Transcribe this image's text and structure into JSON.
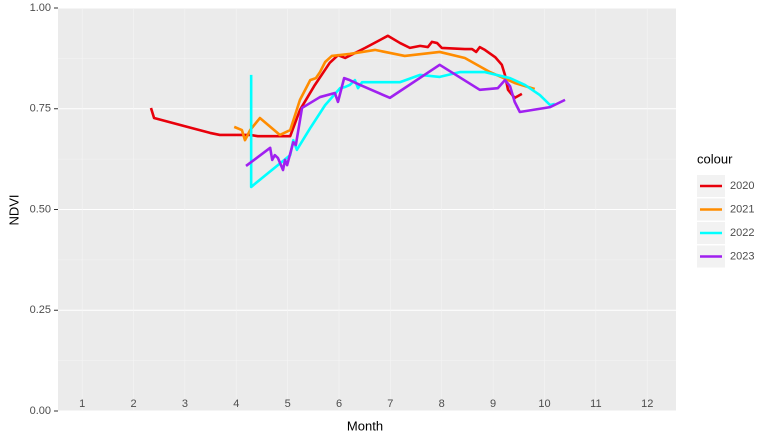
{
  "chart_data": {
    "type": "line",
    "x_label": "Month",
    "y_label": "NDVI",
    "legend_title": "colour",
    "legend": "right",
    "xlim": [
      0.53,
      12.56
    ],
    "ylim": [
      0,
      1
    ],
    "xticks": [
      1,
      2,
      3,
      4,
      5,
      6,
      7,
      8,
      9,
      10,
      11,
      12
    ],
    "yticks": [
      {
        "value": 0,
        "label": "0.00"
      },
      {
        "value": 0.25,
        "label": "0.25"
      },
      {
        "value": 0.5,
        "label": "0.50"
      },
      {
        "value": 0.75,
        "label": "0.75"
      },
      {
        "value": 1,
        "label": "1.00"
      }
    ],
    "grid": true,
    "series": [
      {
        "name": "2020",
        "color": "#e8000b",
        "x": [
          2.34,
          2.4,
          3.49,
          3.68,
          4.27,
          4.42,
          5.05,
          5.24,
          5.53,
          5.82,
          5.98,
          6.12,
          6.51,
          6.95,
          7.19,
          7.38,
          7.58,
          7.73,
          7.81,
          7.91,
          8.0,
          8.45,
          8.59,
          8.67,
          8.74,
          8.84,
          9.04,
          9.17,
          9.23,
          9.29,
          9.42,
          9.56
        ],
        "values": [
          0.752,
          0.727,
          0.69,
          0.685,
          0.685,
          0.682,
          0.682,
          0.747,
          0.809,
          0.864,
          0.883,
          0.876,
          0.901,
          0.931,
          0.913,
          0.901,
          0.906,
          0.903,
          0.916,
          0.913,
          0.901,
          0.898,
          0.898,
          0.891,
          0.903,
          0.896,
          0.878,
          0.859,
          0.834,
          0.797,
          0.777,
          0.787
        ]
      },
      {
        "name": "2021",
        "color": "#ff8c00",
        "x": [
          3.96,
          4.11,
          4.17,
          4.27,
          4.46,
          4.85,
          5.05,
          5.24,
          5.44,
          5.55,
          5.63,
          5.73,
          5.86,
          6.21,
          6.7,
          7.28,
          7.96,
          8.45,
          8.94,
          9.42,
          9.81
        ],
        "values": [
          0.705,
          0.697,
          0.672,
          0.697,
          0.727,
          0.685,
          0.697,
          0.772,
          0.821,
          0.826,
          0.841,
          0.866,
          0.881,
          0.886,
          0.896,
          0.881,
          0.891,
          0.876,
          0.841,
          0.814,
          0.799
        ]
      },
      {
        "name": "2022",
        "color": "#00ffff",
        "x": [
          4.29,
          4.29,
          5.05,
          5.11,
          5.18,
          5.44,
          5.73,
          6.02,
          6.12,
          6.21,
          6.31,
          6.37,
          6.45,
          6.8,
          7.19,
          7.58,
          7.96,
          8.35,
          8.84,
          9.33,
          9.62,
          9.91,
          10.11,
          10.2
        ],
        "values": [
          0.834,
          0.556,
          0.635,
          0.672,
          0.648,
          0.702,
          0.759,
          0.801,
          0.804,
          0.809,
          0.821,
          0.801,
          0.816,
          0.816,
          0.816,
          0.834,
          0.829,
          0.841,
          0.841,
          0.826,
          0.809,
          0.784,
          0.759,
          0.762
        ]
      },
      {
        "name": "2023",
        "color": "#a020f0",
        "x": [
          4.19,
          4.66,
          4.7,
          4.75,
          4.81,
          4.91,
          4.95,
          4.99,
          5.11,
          5.16,
          5.28,
          5.63,
          5.92,
          5.98,
          6.1,
          6.21,
          6.41,
          6.99,
          7.96,
          8.74,
          9.09,
          9.23,
          9.33,
          9.42,
          9.52,
          10.11,
          10.4
        ],
        "values": [
          0.608,
          0.653,
          0.623,
          0.635,
          0.628,
          0.598,
          0.623,
          0.61,
          0.667,
          0.66,
          0.752,
          0.779,
          0.789,
          0.767,
          0.826,
          0.821,
          0.809,
          0.777,
          0.859,
          0.797,
          0.801,
          0.821,
          0.806,
          0.767,
          0.742,
          0.754,
          0.772
        ]
      }
    ]
  }
}
